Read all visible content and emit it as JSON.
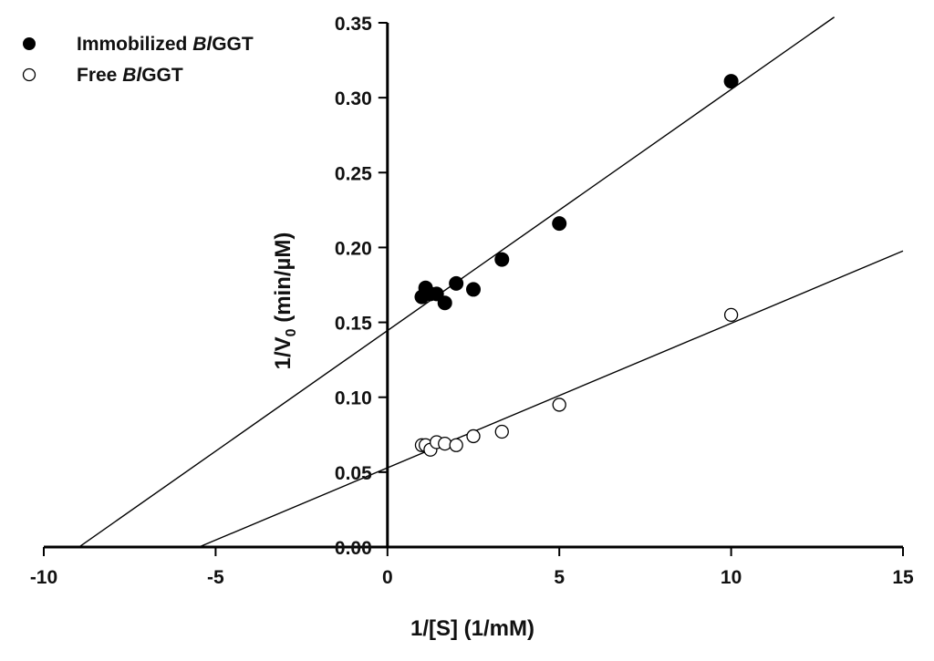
{
  "chart_data": {
    "type": "scatter",
    "title": "",
    "xlabel": "1/[S] (1/mM)",
    "ylabel": {
      "pre": "1/V",
      "sub": "0",
      "post": " (min/µM)"
    },
    "xlim": [
      -10,
      15
    ],
    "ylim": [
      0,
      0.35
    ],
    "xticks": [
      -10,
      -5,
      0,
      5,
      10,
      15
    ],
    "xtick_labels": [
      "-10",
      "-5",
      "0",
      "5",
      "10",
      "15"
    ],
    "yticks": [
      0,
      0.05,
      0.1,
      0.15,
      0.2,
      0.25,
      0.3,
      0.35
    ],
    "ytick_labels": [
      "0.00",
      "0.05",
      "0.10",
      "0.15",
      "0.20",
      "0.25",
      "0.30",
      "0.35"
    ],
    "grid": false,
    "legend_position": "top-left",
    "series": [
      {
        "name": "Immobilized BlGGT",
        "name_parts": [
          "Immobilized ",
          "Bl",
          "GGT"
        ],
        "marker": "filled-circle",
        "color": "#000000",
        "x": [
          1.0,
          1.11,
          1.25,
          1.43,
          1.67,
          2.0,
          2.5,
          3.33,
          5.0,
          10.0
        ],
        "y": [
          0.167,
          0.173,
          0.169,
          0.169,
          0.163,
          0.176,
          0.172,
          0.192,
          0.216,
          0.311
        ],
        "fit": {
          "slope": 0.0161,
          "intercept": 0.1445,
          "x_range": [
            -9.0,
            13.0
          ]
        }
      },
      {
        "name": "Free BlGGT",
        "name_parts": [
          "Free ",
          "Bl",
          "GGT"
        ],
        "marker": "open-circle",
        "color": "#000000",
        "x": [
          1.0,
          1.11,
          1.25,
          1.43,
          1.67,
          2.0,
          2.5,
          3.33,
          5.0,
          10.0
        ],
        "y": [
          0.068,
          0.068,
          0.065,
          0.07,
          0.069,
          0.068,
          0.074,
          0.077,
          0.095,
          0.155
        ],
        "fit": {
          "slope": 0.00965,
          "intercept": 0.0529,
          "x_range": [
            -5.5,
            15.0
          ]
        }
      }
    ]
  }
}
